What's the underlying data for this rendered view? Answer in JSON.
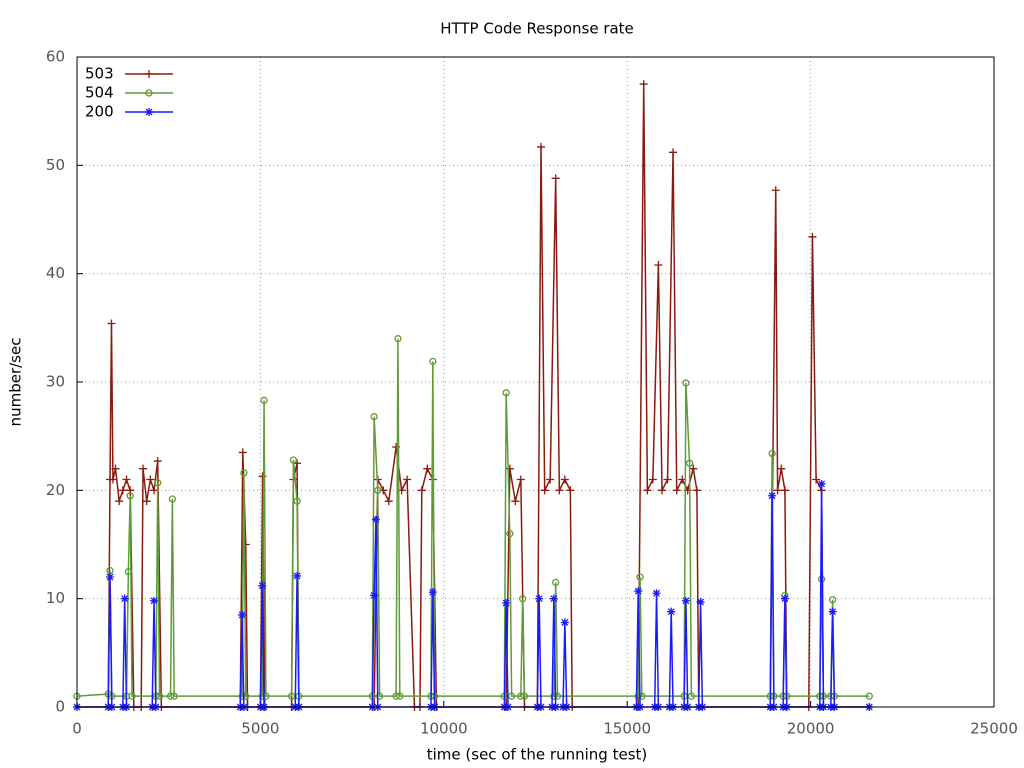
{
  "chart_data": {
    "type": "line",
    "title": "HTTP Code Response rate",
    "xlabel": "time (sec of the running test)",
    "ylabel": "number/sec",
    "xlim": [
      0,
      25000
    ],
    "xticks": [
      0,
      5000,
      10000,
      15000,
      20000,
      25000
    ],
    "ylim": [
      0,
      60
    ],
    "yticks": [
      0,
      10,
      20,
      30,
      40,
      50,
      60
    ],
    "grid": true,
    "legend": "top-left",
    "series": [
      {
        "name": "503",
        "color": "#8b1a0e",
        "marker": "plus",
        "x": [
          0,
          850,
          900,
          940,
          980,
          1050,
          1150,
          1250,
          1350,
          1450,
          1550,
          1750,
          1800,
          1900,
          2000,
          2100,
          2200,
          2300,
          4450,
          4520,
          4600,
          4650,
          5000,
          5060,
          5120,
          5850,
          5900,
          6000,
          6050,
          8100,
          8200,
          8350,
          8500,
          8700,
          8850,
          9000,
          9200,
          9350,
          9400,
          9550,
          9700,
          9800,
          11700,
          11800,
          11950,
          12100,
          12200,
          12550,
          12650,
          12750,
          12900,
          13050,
          13150,
          13300,
          13450,
          13500,
          15300,
          15450,
          15550,
          15700,
          15850,
          15950,
          16100,
          16250,
          16350,
          16500,
          16650,
          16800,
          16900,
          16950,
          18900,
          19050,
          19100,
          19200,
          19300,
          19350,
          19950,
          20050,
          20150,
          20300,
          20350,
          21600
        ],
        "values": [
          0,
          0,
          21,
          35.4,
          21,
          22,
          19,
          20,
          21,
          20,
          0,
          0,
          22,
          19,
          21,
          20,
          22.7,
          0,
          0,
          23.5,
          15,
          0,
          0,
          21.3,
          0,
          0,
          21,
          22.5,
          0,
          0,
          21,
          20,
          19,
          24,
          20,
          21,
          0,
          0,
          20,
          22,
          21,
          0,
          0,
          22,
          19,
          21,
          0,
          0,
          51.7,
          20,
          21,
          48.8,
          20,
          21,
          20,
          0,
          0,
          57.5,
          20,
          21,
          40.8,
          20,
          21,
          51.2,
          20,
          21,
          20,
          22,
          20,
          0,
          0,
          47.7,
          20,
          22,
          20,
          0,
          0,
          43.4,
          21,
          20,
          0,
          0
        ]
      },
      {
        "name": "504",
        "color": "#5e9c36",
        "marker": "circle",
        "x": [
          0,
          850,
          900,
          950,
          1350,
          1400,
          1450,
          1500,
          2150,
          2200,
          2250,
          2550,
          2600,
          2650,
          4500,
          4550,
          4600,
          5050,
          5100,
          5150,
          5850,
          5900,
          6000,
          6050,
          8050,
          8100,
          8200,
          8250,
          8700,
          8750,
          8800,
          9650,
          9700,
          9750,
          11650,
          11700,
          11800,
          11850,
          12100,
          12150,
          12200,
          13000,
          13050,
          13100,
          15300,
          15350,
          15400,
          16550,
          16600,
          16700,
          16750,
          18900,
          18950,
          19000,
          19250,
          19300,
          19350,
          20250,
          20300,
          20350,
          20550,
          20600,
          20650,
          21600
        ],
        "values": [
          1,
          1.2,
          12.6,
          1,
          1,
          12.5,
          19.5,
          1,
          1,
          20.7,
          1,
          1,
          19.2,
          1,
          1,
          21.6,
          1,
          1,
          28.3,
          1,
          1,
          22.8,
          19,
          1,
          1,
          26.8,
          20,
          1,
          1,
          34,
          1,
          1,
          31.9,
          1,
          1,
          29,
          16,
          1,
          1,
          10,
          1,
          1,
          11.5,
          1,
          1,
          12,
          1,
          1,
          29.9,
          22.5,
          1,
          1,
          23.4,
          1,
          1,
          10.3,
          1,
          1,
          11.8,
          1,
          1,
          9.9,
          1,
          1
        ]
      },
      {
        "name": "200",
        "color": "#1a1aff",
        "marker": "star",
        "x": [
          0,
          850,
          900,
          950,
          1250,
          1300,
          1350,
          2050,
          2100,
          2150,
          4450,
          4500,
          4550,
          5000,
          5050,
          5100,
          5950,
          6000,
          6050,
          8050,
          8100,
          8150,
          8200,
          9650,
          9700,
          9750,
          11650,
          11700,
          11750,
          12550,
          12600,
          12650,
          12950,
          13000,
          13050,
          13250,
          13300,
          13350,
          15250,
          15300,
          15350,
          15750,
          15800,
          15850,
          16150,
          16200,
          16250,
          16550,
          16600,
          16650,
          16950,
          17000,
          17050,
          18900,
          18950,
          19000,
          19250,
          19300,
          19350,
          20250,
          20300,
          20350,
          20550,
          20600,
          20650,
          21600
        ],
        "values": [
          0,
          0,
          12,
          0,
          0,
          10,
          0,
          0,
          9.8,
          0,
          0,
          8.5,
          0,
          0,
          11.2,
          0,
          0,
          12.1,
          0,
          0,
          10.3,
          17.3,
          0,
          0,
          10.6,
          0,
          0,
          9.6,
          0,
          0,
          10,
          0,
          0,
          10,
          0,
          0,
          7.8,
          0,
          0,
          10.7,
          0,
          0,
          10.5,
          0,
          0,
          8.8,
          0,
          0,
          9.8,
          0,
          0,
          9.7,
          0,
          0,
          19.5,
          0,
          0,
          10,
          0,
          0,
          20.6,
          0,
          0,
          8.8,
          0,
          0
        ]
      }
    ]
  }
}
